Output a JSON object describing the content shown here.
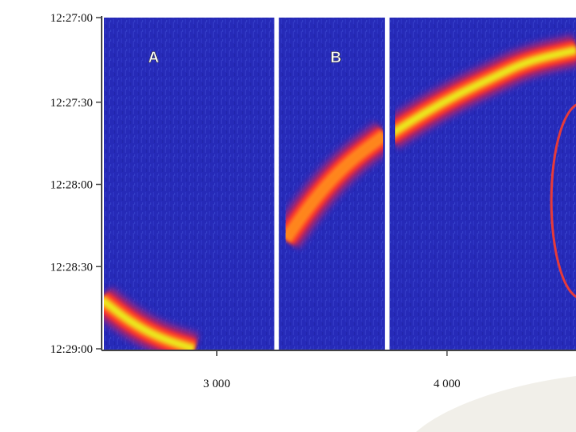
{
  "chart_data": {
    "type": "heatmap",
    "x_axis": {
      "ticks": [
        {
          "value": 3000,
          "label": "3 000"
        },
        {
          "value": 4000,
          "label": "4 000"
        }
      ],
      "range": [
        2500,
        4560
      ]
    },
    "y_axis": {
      "ticks": [
        {
          "value": "12:27:00",
          "label": "12:27:00"
        },
        {
          "value": "12:27:30",
          "label": "12:27:30"
        },
        {
          "value": "12:28:00",
          "label": "12:28:00"
        },
        {
          "value": "12:28:30",
          "label": "12:28:30"
        },
        {
          "value": "12:29:00",
          "label": "12:29:00"
        }
      ],
      "range": [
        "12:27:00",
        "12:29:00"
      ],
      "direction": "time increases downward"
    },
    "panels": [
      {
        "label": "A",
        "x_range": [
          2500,
          3250
        ]
      },
      {
        "label": "B",
        "x_range": [
          3270,
          3730
        ]
      },
      {
        "label": "",
        "x_range": [
          3750,
          4560
        ]
      }
    ],
    "traces": [
      {
        "panel": "A",
        "points": [
          {
            "x": 2500,
            "t": "12:28:42"
          },
          {
            "x": 2620,
            "t": "12:28:50"
          },
          {
            "x": 2750,
            "t": "12:28:56"
          },
          {
            "x": 2900,
            "t": "12:29:00"
          }
        ],
        "peak": "yellow"
      },
      {
        "panel": "B",
        "points": [
          {
            "x": 3300,
            "t": "12:28:20"
          },
          {
            "x": 3400,
            "t": "12:28:08"
          },
          {
            "x": 3500,
            "t": "12:27:58"
          },
          {
            "x": 3600,
            "t": "12:27:50"
          },
          {
            "x": 3730,
            "t": "12:27:42"
          }
        ],
        "peak": "orange"
      },
      {
        "panel": "",
        "points": [
          {
            "x": 3750,
            "t": "12:27:42"
          },
          {
            "x": 3900,
            "t": "12:27:34"
          },
          {
            "x": 4050,
            "t": "12:27:27"
          },
          {
            "x": 4200,
            "t": "12:27:21"
          },
          {
            "x": 4350,
            "t": "12:27:15"
          },
          {
            "x": 4560,
            "t": "12:27:11"
          }
        ],
        "peak": "yellow"
      }
    ],
    "annotations": [
      {
        "type": "ellipse",
        "outline": "red",
        "center": {
          "x": 4585,
          "t": "12:28:06"
        }
      }
    ],
    "colormap": [
      "#1a1aa6",
      "#3b2ec8",
      "#7a2a9e",
      "#d6224c",
      "#ff3b2a",
      "#ff8a1a",
      "#e9f21f"
    ],
    "grid": false,
    "legend": "none"
  }
}
